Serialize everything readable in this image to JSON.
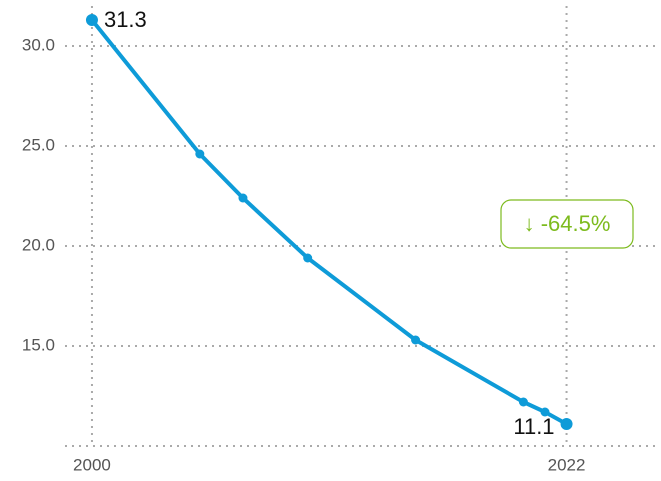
{
  "chart_data": {
    "type": "line",
    "x": [
      2000,
      2005,
      2007,
      2010,
      2015,
      2020,
      2021,
      2022
    ],
    "series": [
      {
        "color": "#0e9bd8",
        "values": [
          31.3,
          24.6,
          22.4,
          19.4,
          15.3,
          12.2,
          11.7,
          11.1
        ]
      }
    ],
    "xlim": [
      1998.75,
      2026.1
    ],
    "xticks": [
      2000,
      2022
    ],
    "ylim": [
      10,
      32.3
    ],
    "yticks": [
      {
        "value": 15,
        "label": "15.0"
      },
      {
        "value": 20,
        "label": "20.0"
      },
      {
        "value": 25,
        "label": "25.0"
      },
      {
        "value": 30,
        "label": "30.0"
      }
    ],
    "grid": true,
    "annotation": "↓ -64.5%",
    "annotation_color": "#7dbb1e"
  }
}
